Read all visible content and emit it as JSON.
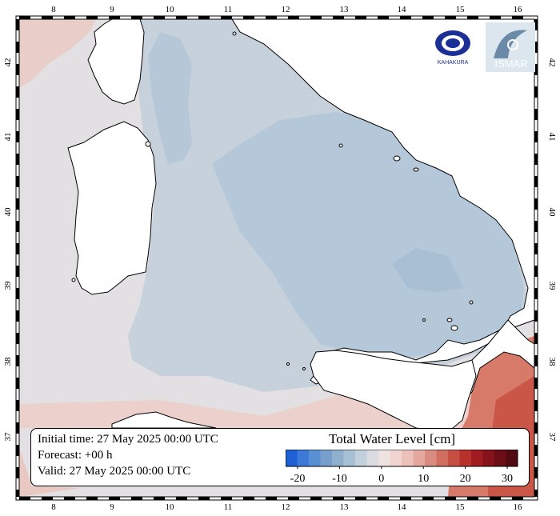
{
  "map": {
    "top_ticks": [
      "8",
      "9",
      "10",
      "11",
      "12",
      "13",
      "14",
      "15",
      "16"
    ],
    "bottom_ticks": [
      "8",
      "9",
      "10",
      "11",
      "12",
      "13",
      "14",
      "15",
      "16"
    ],
    "left_ticks": [
      "42",
      "41",
      "40",
      "39",
      "38",
      "37"
    ],
    "right_ticks": [
      "42",
      "41",
      "40",
      "39",
      "38",
      "37"
    ],
    "colors": {
      "land": "#ffffff",
      "sea_neutral": "#e2e0e2",
      "sea_low": "#bccbd9",
      "sea_lower": "#a9bfd3",
      "sea_high": "#e6b3aa",
      "sea_higher": "#cf5d4c",
      "coast": "#000000"
    }
  },
  "logos": {
    "left_text": "KAHAKURA",
    "right_text": "ISMAR"
  },
  "info": {
    "initial_time": "Initial time: 27 May 2025 00:00 UTC",
    "forecast": "Forecast: +00 h",
    "valid": "Valid: 27 May 2025 00:00 UTC"
  },
  "colorbar": {
    "title": "Total Water Level [cm]",
    "tick_labels": [
      "-20",
      "-10",
      "0",
      "10",
      "20",
      "30"
    ],
    "colors": [
      "#1f5fd6",
      "#3d79d9",
      "#5990d3",
      "#779fcb",
      "#8fb0cd",
      "#a8c0d6",
      "#c1d0db",
      "#d9dde2",
      "#efe3e2",
      "#f1d3cf",
      "#ecc1ba",
      "#e4a89e",
      "#db8c80",
      "#d06e60",
      "#c44f42",
      "#b6322b",
      "#a11c20",
      "#86131b",
      "#6b0d17",
      "#510912"
    ]
  }
}
